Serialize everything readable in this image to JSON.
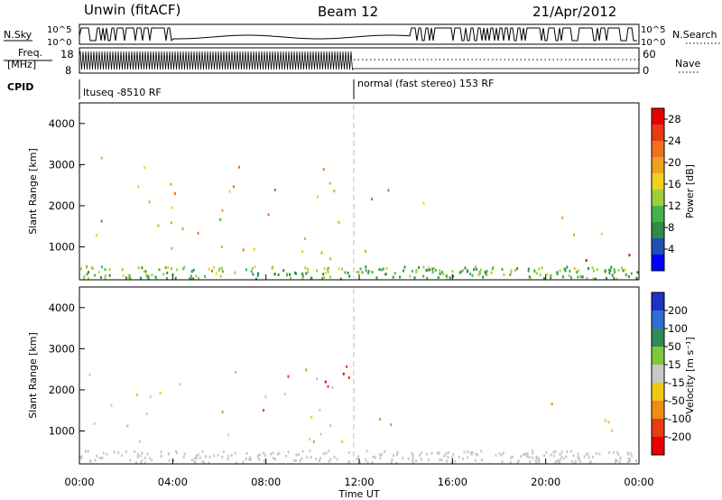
{
  "header": {
    "station": "Unwin (fitACF)",
    "beam": "Beam 12",
    "date": "21/Apr/2012"
  },
  "top_panels": {
    "nsky_label": "N.Sky",
    "nsearch_label": "N.Search",
    "nsky_ticks": [
      "10^5",
      "10^0"
    ],
    "nsearch_ticks": [
      "10^5",
      "10^0"
    ],
    "freq_label_line1": "Freq.",
    "freq_label_line2": "[MHz]",
    "freq_ticks": [
      "18",
      "8"
    ],
    "nave_label": "Nave",
    "nave_ticks": [
      "60",
      "0"
    ],
    "cpid_label": "CPID",
    "cpid_segments": [
      {
        "text": "ltuseq -8510 RF",
        "start_hour": 0
      },
      {
        "text": "normal (fast stereo) 153 RF",
        "start_hour": 12
      }
    ]
  },
  "chart_data": [
    {
      "type": "heatmap",
      "name": "power",
      "ylabel": "Slant Range [km]",
      "xlabel": "Time UT",
      "xlim": [
        0,
        24
      ],
      "ylim": [
        200,
        4500
      ],
      "yticks": [
        "1000",
        "2000",
        "3000",
        "4000"
      ],
      "xticks": [
        "00:00",
        "04:00",
        "08:00",
        "12:00",
        "16:00",
        "20:00",
        "00:00"
      ],
      "colorbar": {
        "label": "Power [dB]",
        "ticks": [
          "4",
          "8",
          "12",
          "16",
          "20",
          "24",
          "28"
        ],
        "range": [
          0,
          30
        ],
        "colors": [
          "#0000ff",
          "#1e50b4",
          "#2f8c46",
          "#44b24a",
          "#9ccf3a",
          "#f0d21e",
          "#f0a020",
          "#f07020",
          "#e83a14",
          "#e80000"
        ]
      },
      "regions": [
        {
          "t0": 0,
          "t1": 11.8,
          "r0": 600,
          "r1": 3200,
          "level": 16
        },
        {
          "t0": 12.2,
          "t1": 14.8,
          "r0": 800,
          "r1": 1300,
          "level": 26
        },
        {
          "t0": 12.5,
          "t1": 15.5,
          "r0": 1700,
          "r1": 2500,
          "level": 14
        },
        {
          "t0": 19.5,
          "t1": 24,
          "r0": 700,
          "r1": 1400,
          "level": 24
        },
        {
          "t0": 19.6,
          "t1": 21.5,
          "r0": 1400,
          "r1": 1900,
          "level": 22
        }
      ]
    },
    {
      "type": "heatmap",
      "name": "velocity",
      "ylabel": "Slant Range [km]",
      "xlabel": "Time UT",
      "xlim": [
        0,
        24
      ],
      "ylim": [
        200,
        4500
      ],
      "yticks": [
        "1000",
        "2000",
        "3000",
        "4000"
      ],
      "xticks": [
        "00:00",
        "04:00",
        "08:00",
        "12:00",
        "16:00",
        "20:00",
        "00:00"
      ],
      "colorbar": {
        "label": "Velocity [m s⁻¹]",
        "ticks": [
          "200",
          "100",
          "50",
          "15",
          "-15",
          "-50",
          "-100",
          "-200"
        ],
        "range": [
          -250,
          250
        ],
        "colors": [
          "#1e32c8",
          "#2f6ed2",
          "#2e8b57",
          "#7ec83c",
          "#c8c8c8",
          "#f0c814",
          "#f08c14",
          "#e83c14",
          "#e80000"
        ]
      },
      "regions": [
        {
          "t0": 0,
          "t1": 11.8,
          "r0": 700,
          "r1": 2600,
          "level": 0
        },
        {
          "t0": 7.5,
          "t1": 11.8,
          "r0": 1400,
          "r1": 2800,
          "level": -180
        },
        {
          "t0": 12.2,
          "t1": 15.2,
          "r0": 1100,
          "r1": 1700,
          "level": 40
        },
        {
          "t0": 19.5,
          "t1": 24,
          "r0": 800,
          "r1": 1400,
          "level": 0
        },
        {
          "t0": 20.2,
          "t1": 21.8,
          "r0": 1600,
          "r1": 2000,
          "level": -80
        }
      ]
    }
  ]
}
